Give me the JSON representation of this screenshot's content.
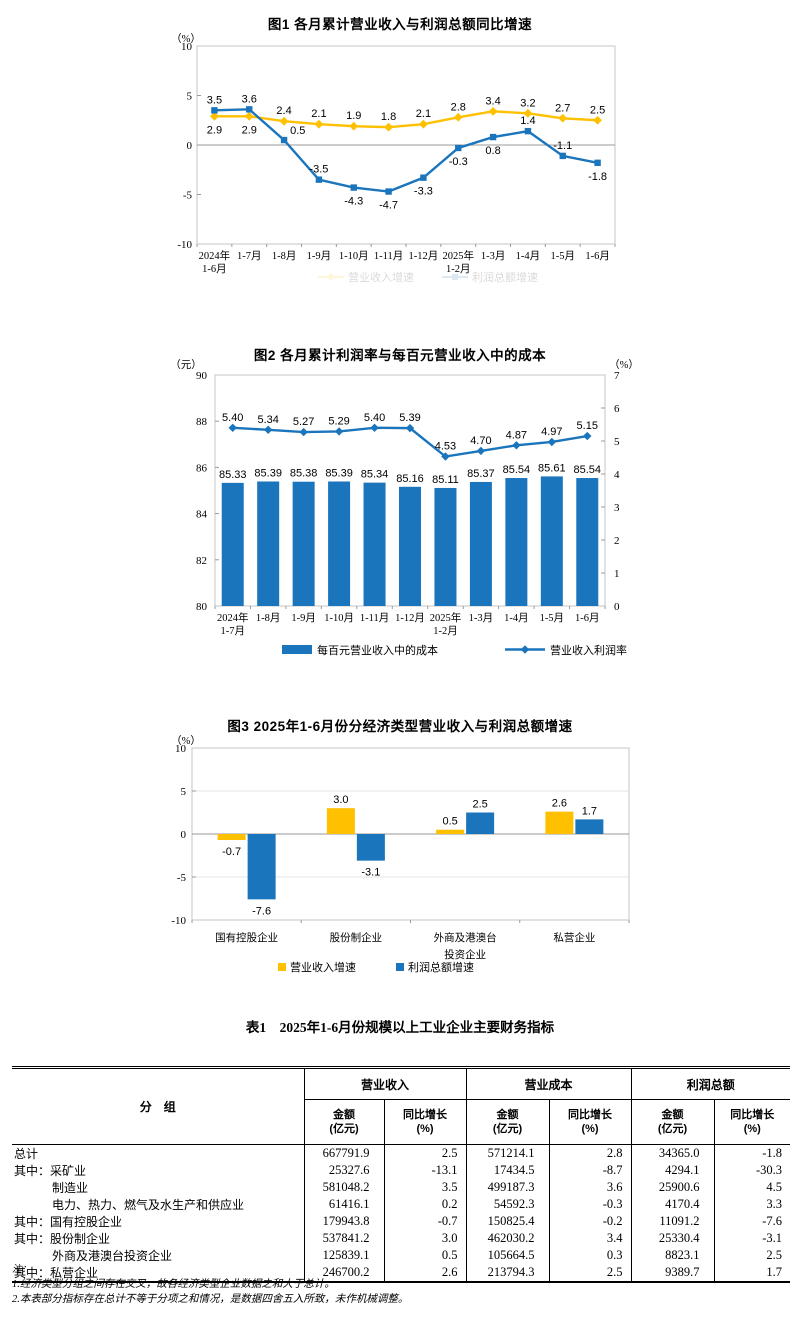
{
  "colors": {
    "blue": "#1B75BC",
    "yellow": "#FFC000",
    "plot_border": "#c6c6c6",
    "zero_line": "#9a9a9a",
    "grid_faint": "#e4e4e4"
  },
  "chart_data": [
    {
      "id": "chart1",
      "type": "line",
      "title": "图1  各月累计营业收入与利润总额同比增速",
      "unit_left": "（%）",
      "categories": [
        [
          "2024年",
          "1-6月"
        ],
        [
          "1-7月"
        ],
        [
          "1-8月"
        ],
        [
          "1-9月"
        ],
        [
          "1-10月"
        ],
        [
          "1-11月"
        ],
        [
          "1-12月"
        ],
        [
          "2025年",
          "1-2月"
        ],
        [
          "1-3月"
        ],
        [
          "1-4月"
        ],
        [
          "1-5月"
        ],
        [
          "1-6月"
        ]
      ],
      "ylim": [
        -10,
        10
      ],
      "yticks": [
        10,
        5,
        0,
        -5,
        -10
      ],
      "grid": "zero-only",
      "legend_position": "bottom-faint",
      "series": [
        {
          "name": "营业收入增速",
          "color": "yellow",
          "marker": "diamond",
          "values": [
            "2.9",
            "2.9",
            "2.4",
            "2.1",
            "1.9",
            "1.8",
            "2.1",
            "2.8",
            "3.4",
            "3.2",
            "2.7",
            "2.5"
          ],
          "label_pos": [
            "below",
            "below",
            "above",
            "above",
            "above",
            "above",
            "above",
            "above",
            "above",
            "above",
            "above",
            "above"
          ]
        },
        {
          "name": "利润总额增速",
          "color": "blue",
          "marker": "square",
          "values": [
            "3.5",
            "3.6",
            "0.5",
            "-3.5",
            "-4.3",
            "-4.7",
            "-3.3",
            "-0.3",
            "0.8",
            "1.4",
            "-1.1",
            "-1.8"
          ],
          "label_pos": [
            "above",
            "above",
            "right",
            "above",
            "below",
            "below",
            "below",
            "below",
            "below",
            "above",
            "above",
            "below"
          ]
        }
      ]
    },
    {
      "id": "chart2",
      "type": "bar-line",
      "title": "图2  各月累计利润率与每百元营业收入中的成本",
      "unit_left": "（元）",
      "unit_right": "（%）",
      "categories": [
        [
          "2024年",
          "1-7月"
        ],
        [
          "1-8月"
        ],
        [
          "1-9月"
        ],
        [
          "1-10月"
        ],
        [
          "1-11月"
        ],
        [
          "1-12月"
        ],
        [
          "2025年",
          "1-2月"
        ],
        [
          "1-3月"
        ],
        [
          "1-4月"
        ],
        [
          "1-5月"
        ],
        [
          "1-6月"
        ]
      ],
      "left_ylim": [
        80,
        90
      ],
      "left_yticks": [
        90,
        88,
        86,
        84,
        82,
        80
      ],
      "right_ylim": [
        0,
        7
      ],
      "right_yticks": [
        7,
        6,
        5,
        4,
        3,
        2,
        1,
        0
      ],
      "grid": "off",
      "legend_position": "bottom",
      "bar_series": {
        "name": "每百元营业收入中的成本",
        "color": "blue",
        "values": [
          "85.33",
          "85.39",
          "85.38",
          "85.39",
          "85.34",
          "85.16",
          "85.11",
          "85.37",
          "85.54",
          "85.61",
          "85.54"
        ]
      },
      "line_series": {
        "name": "营业收入利润率",
        "color": "blue",
        "marker": "diamond",
        "values": [
          "5.40",
          "5.34",
          "5.27",
          "5.29",
          "5.40",
          "5.39",
          "4.53",
          "4.70",
          "4.87",
          "4.97",
          "5.15"
        ]
      }
    },
    {
      "id": "chart3",
      "type": "grouped-bar",
      "title": "图3  2025年1-6月份分经济类型营业收入与利润总额增速",
      "unit_left": "（%）",
      "categories": [
        [
          "国有控股企业"
        ],
        [
          "股份制企业"
        ],
        [
          "外商及港澳台",
          "投资企业"
        ],
        [
          "私营企业"
        ]
      ],
      "ylim": [
        -10,
        10
      ],
      "yticks": [
        10,
        5,
        0,
        -5,
        -10
      ],
      "grid": "faint-5",
      "legend_position": "bottom",
      "series": [
        {
          "name": "营业收入增速",
          "color": "yellow",
          "values": [
            "-0.7",
            "3.0",
            "0.5",
            "2.6"
          ]
        },
        {
          "name": "利润总额增速",
          "color": "blue",
          "values": [
            "-7.6",
            "-3.1",
            "2.5",
            "1.7"
          ]
        }
      ]
    }
  ],
  "table": {
    "title": "表1　2025年1-6月份规模以上工业企业主要财务指标",
    "col_group_header": "分　组",
    "groups": [
      "营业收入",
      "营业成本",
      "利润总额"
    ],
    "sub_amount": [
      "金额",
      "(亿元)"
    ],
    "sub_growth": [
      "同比增长",
      "(%)"
    ],
    "rows": [
      {
        "label": "总计",
        "indent": 0,
        "values": [
          "667791.9",
          "2.5",
          "571214.1",
          "2.8",
          "34365.0",
          "-1.8"
        ]
      },
      {
        "label": "其中：采矿业",
        "indent": 0,
        "values": [
          "25327.6",
          "-13.1",
          "17434.5",
          "-8.7",
          "4294.1",
          "-30.3"
        ]
      },
      {
        "label": "制造业",
        "indent": 1,
        "values": [
          "581048.2",
          "3.5",
          "499187.3",
          "3.6",
          "25900.6",
          "4.5"
        ]
      },
      {
        "label": "电力、热力、燃气及水生产和供应业",
        "indent": 1,
        "values": [
          "61416.1",
          "0.2",
          "54592.3",
          "-0.3",
          "4170.4",
          "3.3"
        ]
      },
      {
        "label": "其中：国有控股企业",
        "indent": 0,
        "values": [
          "179943.8",
          "-0.7",
          "150825.4",
          "-0.2",
          "11091.2",
          "-7.6"
        ]
      },
      {
        "label": "其中：股份制企业",
        "indent": 0,
        "values": [
          "537841.2",
          "3.0",
          "462030.2",
          "3.4",
          "25330.4",
          "-3.1"
        ]
      },
      {
        "label": "外商及港澳台投资企业",
        "indent": 1,
        "values": [
          "125839.1",
          "0.5",
          "105664.5",
          "0.3",
          "8823.1",
          "2.5"
        ]
      },
      {
        "label": "其中：私营企业",
        "indent": 0,
        "values": [
          "246700.2",
          "2.6",
          "213794.3",
          "2.5",
          "9389.7",
          "1.7"
        ]
      }
    ]
  },
  "notes": {
    "label": "注：",
    "items": [
      "1.经济类型分组之间存在交叉，故各经济类型企业数据之和大于总计。",
      "2.本表部分指标存在总计不等于分项之和情况，是数据四舍五入所致，未作机械调整。"
    ]
  }
}
